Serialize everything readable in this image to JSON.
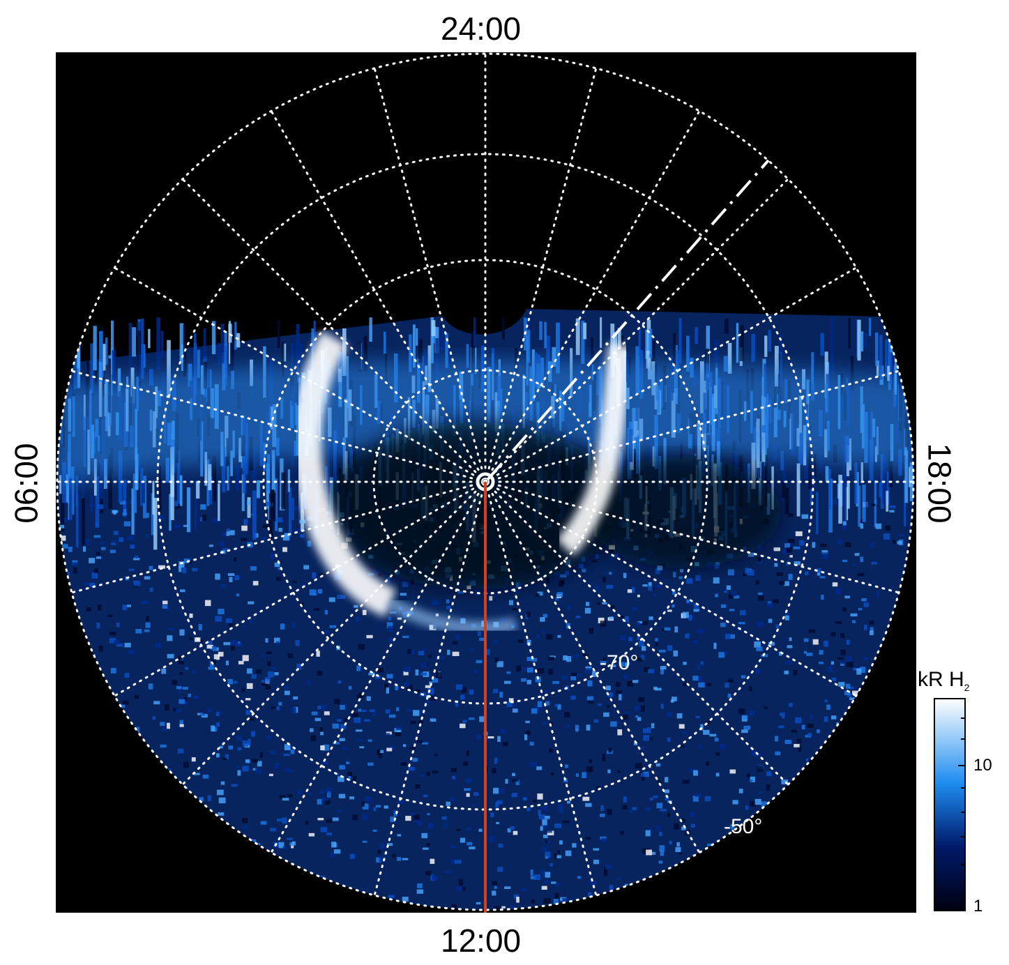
{
  "plot": {
    "local_time_labels": {
      "top": "24:00",
      "bottom": "12:00",
      "left": "06:00",
      "right": "18:00"
    },
    "latitude_labels": [
      "-70°",
      "-50°"
    ],
    "colors": {
      "background": "#000000",
      "grid": "#ffffff",
      "meridian_line": "#d7401e",
      "cmap_low": "#000018",
      "cmap_mid": "#1e8cf0",
      "cmap_high": "#ffffff"
    }
  },
  "colorbar": {
    "title": "kR H",
    "title_sub": "2",
    "ticks": [
      "10",
      "1"
    ]
  }
}
